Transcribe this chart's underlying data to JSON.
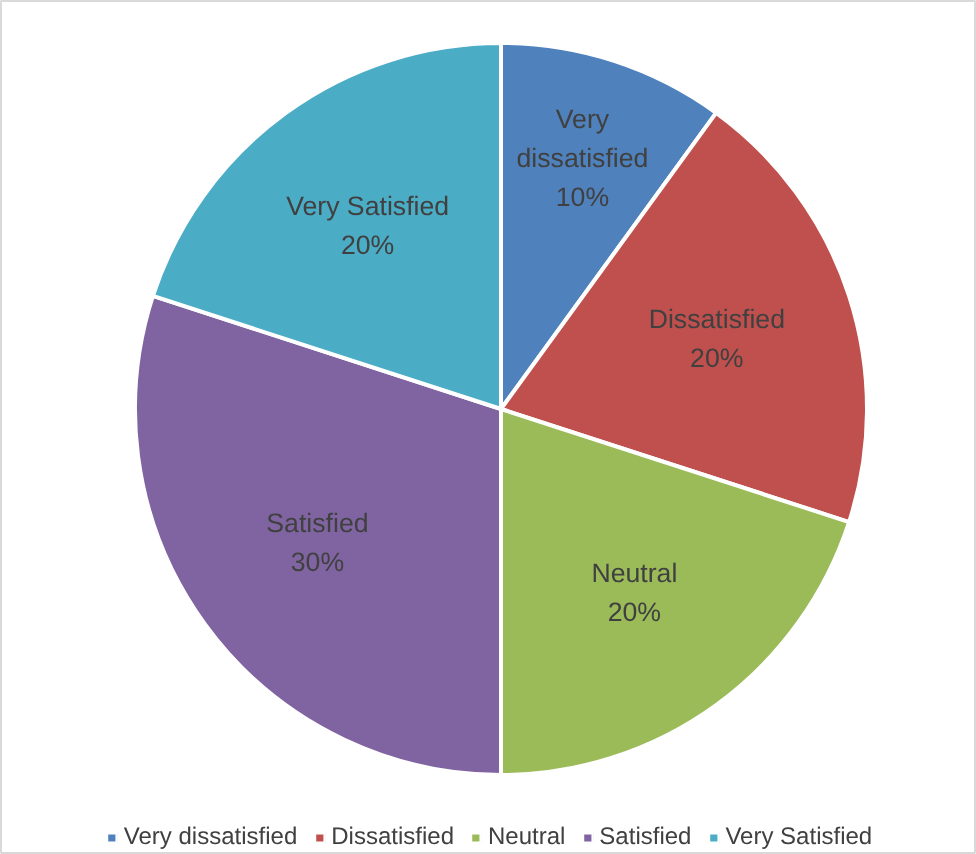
{
  "chart_data": {
    "type": "pie",
    "categories": [
      "Very dissatisfied",
      "Dissatisfied",
      "Neutral",
      "Satisfied",
      "Very Satisfied"
    ],
    "values": [
      10,
      20,
      20,
      30,
      20
    ],
    "colors": [
      "#4f81bd",
      "#c0504d",
      "#9bbb59",
      "#8064a2",
      "#4bacc6"
    ],
    "value_labels": [
      "10%",
      "20%",
      "20%",
      "30%",
      "20%"
    ],
    "legend": "bottom"
  }
}
